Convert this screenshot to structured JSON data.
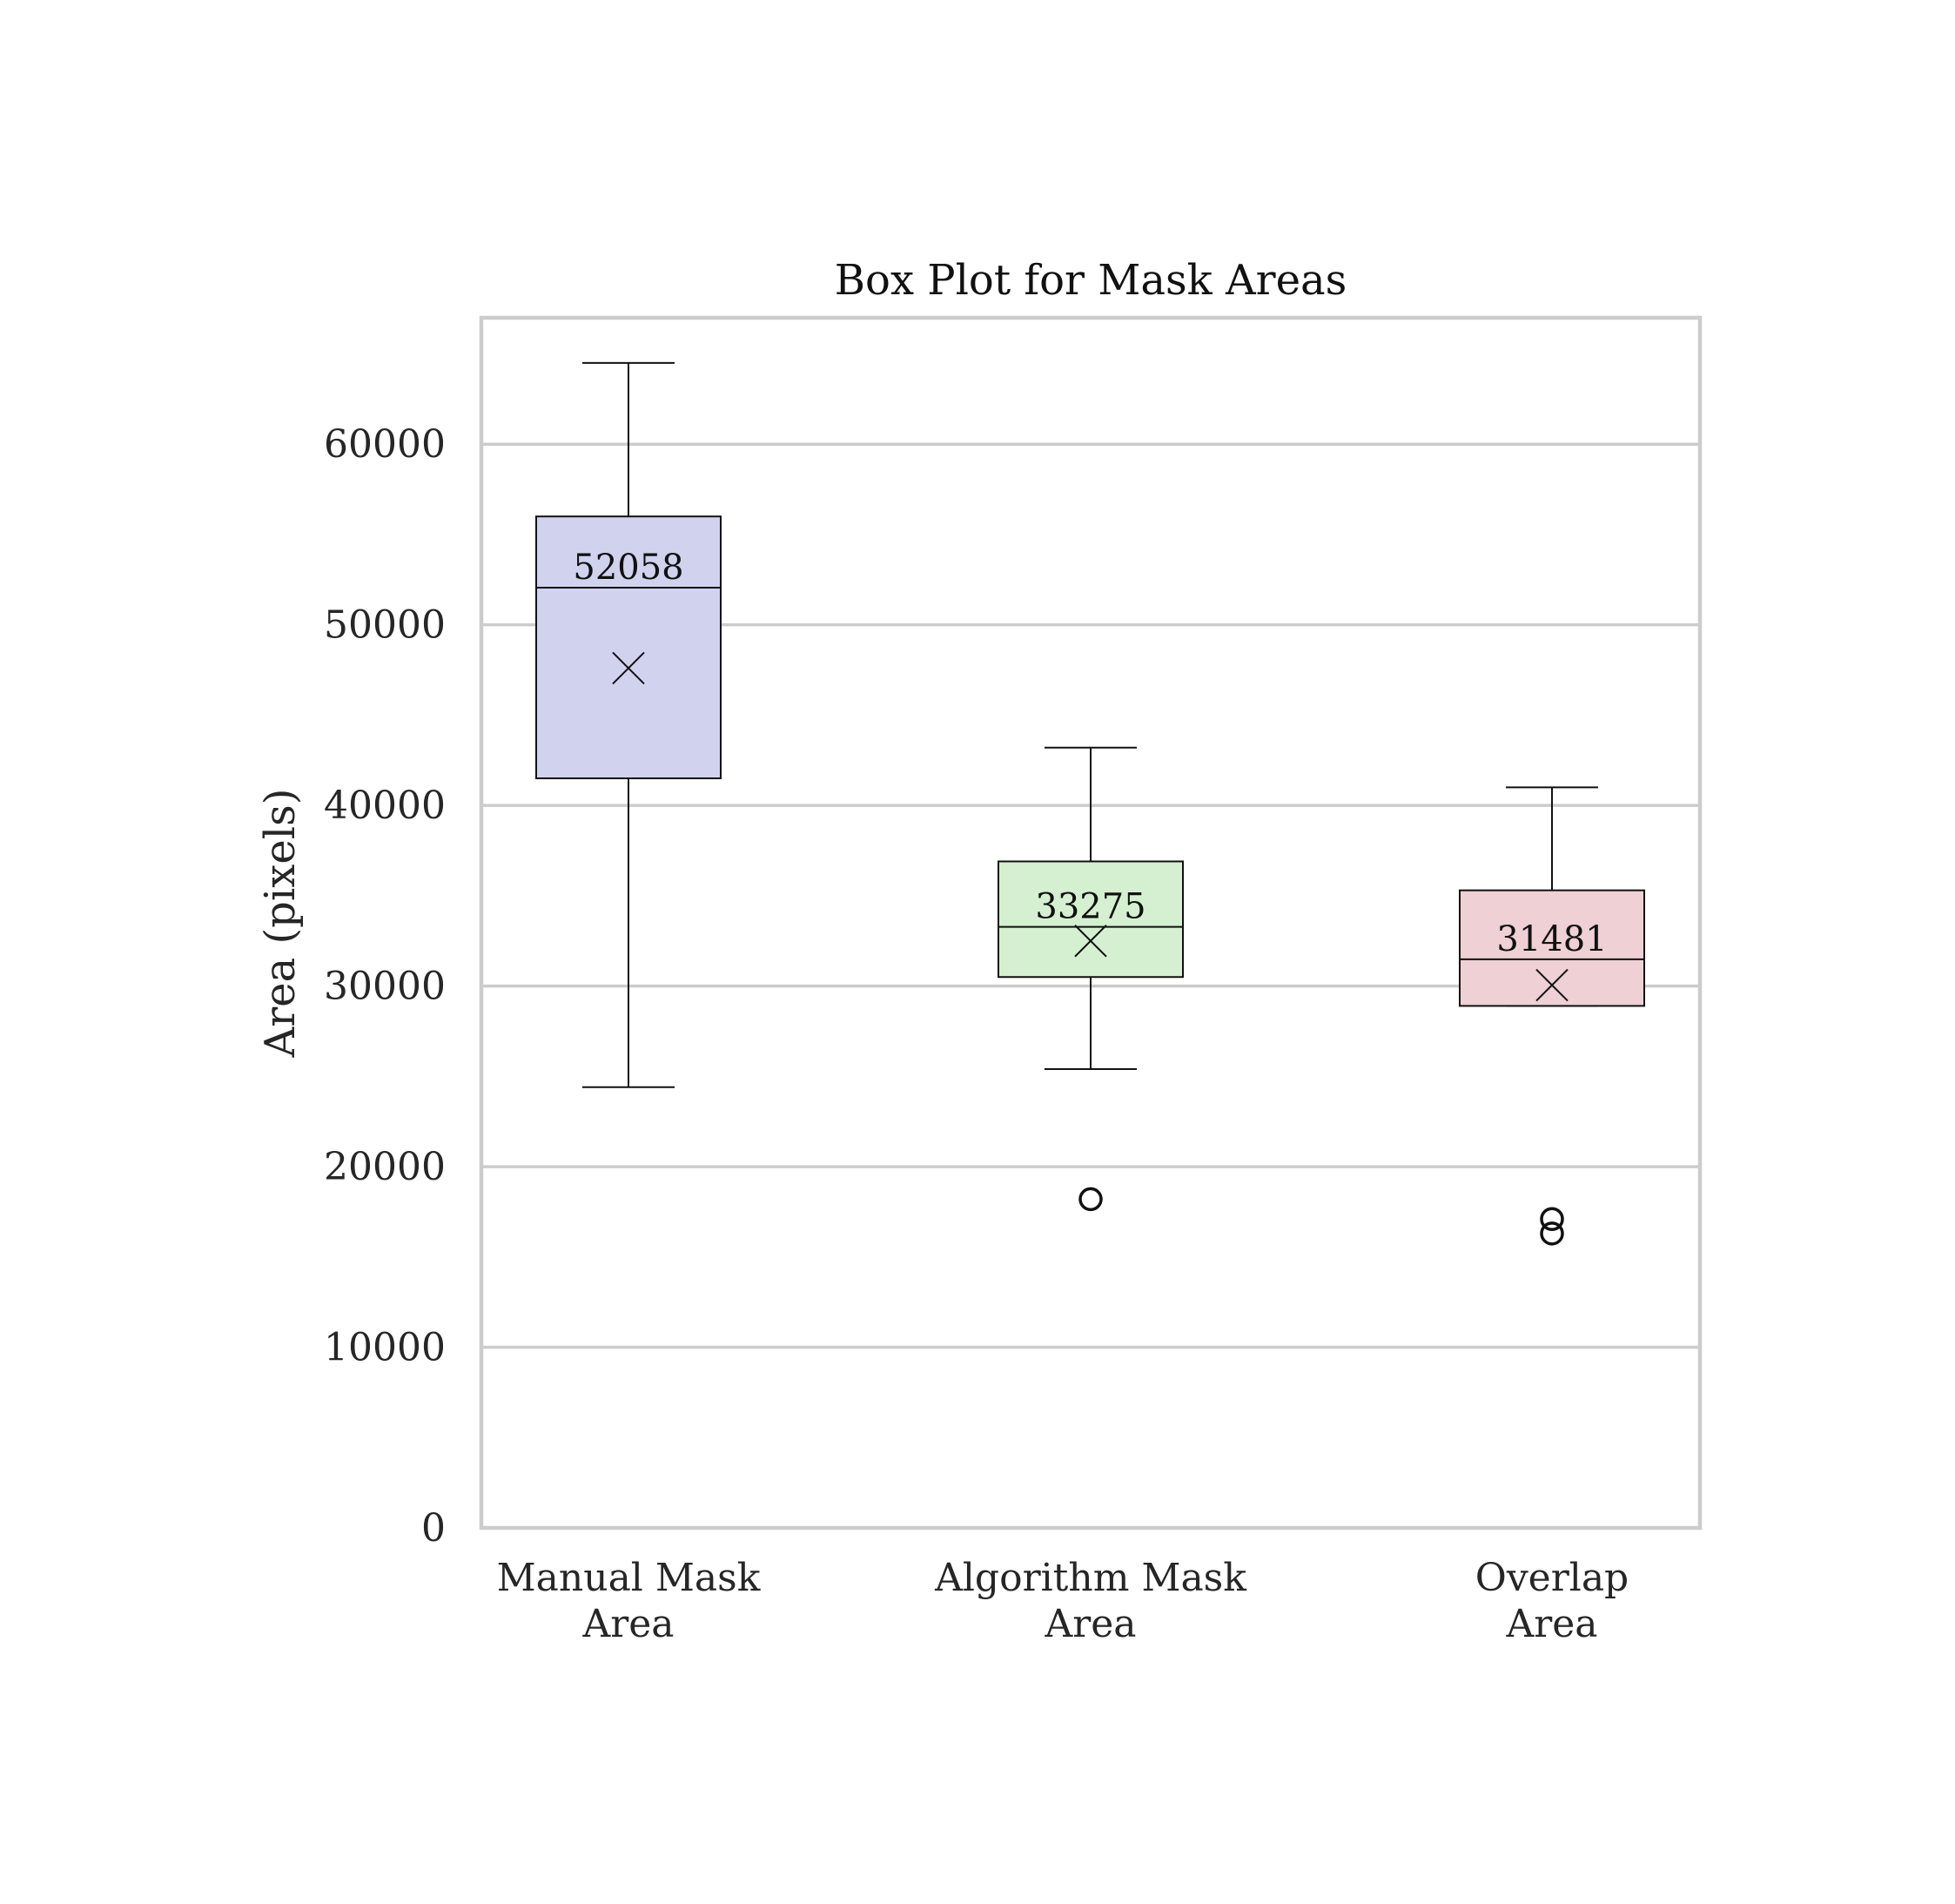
{
  "chart_data": {
    "type": "box",
    "title": "Box Plot for Mask Areas",
    "xlabel": "",
    "ylabel": "Area (pixels)",
    "ylim": [
      0,
      67000
    ],
    "yticks": [
      0,
      10000,
      20000,
      30000,
      40000,
      50000,
      60000
    ],
    "grid": "horizontal",
    "categories": [
      [
        "Manual Mask",
        "Area"
      ],
      [
        "Algorithm Mask",
        "Area"
      ],
      [
        "Overlap",
        "Area"
      ]
    ],
    "boxes": [
      {
        "whisker_low": 24400,
        "q1": 41500,
        "median": 52058,
        "q3": 56000,
        "whisker_high": 64500,
        "mean": 47600,
        "outliers": [],
        "median_label": "52058",
        "color": "#d0d2ee"
      },
      {
        "whisker_low": 25400,
        "q1": 30500,
        "median": 33275,
        "q3": 36900,
        "whisker_high": 43200,
        "mean": 32500,
        "outliers": [
          18200
        ],
        "median_label": "33275",
        "color": "#d5f0d0"
      },
      {
        "whisker_low": 28900,
        "q1": 28900,
        "median": 31481,
        "q3": 35300,
        "whisker_high": 41000,
        "mean": 30050,
        "outliers": [
          17100,
          16300
        ],
        "median_label": "31481",
        "color": "#eed0d5"
      }
    ]
  }
}
